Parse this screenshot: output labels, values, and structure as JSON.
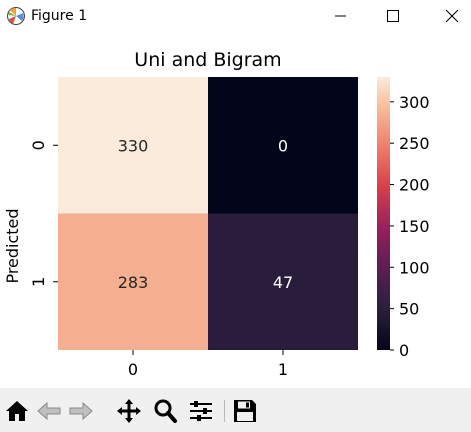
{
  "window": {
    "title": "Figure 1",
    "controls": [
      "minimize",
      "maximize",
      "close"
    ]
  },
  "toolbar": {
    "icons": [
      "home-icon",
      "back-arrow-icon",
      "forward-arrow-icon",
      "pan-icon",
      "zoom-icon",
      "configure-subplots-icon",
      "save-icon"
    ]
  },
  "chart_data": {
    "type": "heatmap",
    "title": "Uni and Bigram",
    "ylabel": "Predicted",
    "xlabel": "",
    "x_ticks": [
      "0",
      "1"
    ],
    "y_ticks": [
      "0",
      "1"
    ],
    "matrix": [
      [
        330,
        0
      ],
      [
        283,
        47
      ]
    ],
    "annotations": [
      [
        "330",
        "0"
      ],
      [
        "283",
        "47"
      ]
    ],
    "colormap": "rocket",
    "colorbar": {
      "range": [
        0,
        330
      ],
      "ticks": [
        0,
        50,
        100,
        150,
        200,
        250,
        300
      ],
      "tick_labels": [
        "0",
        "50",
        "100",
        "150",
        "200",
        "250",
        "300"
      ]
    }
  }
}
